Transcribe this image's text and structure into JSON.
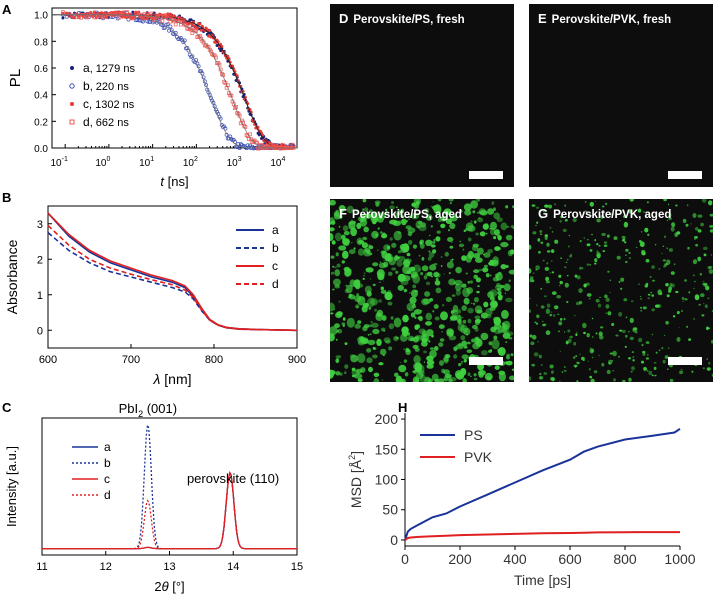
{
  "chart_data": [
    {
      "panel": "A",
      "type": "scatter",
      "xscale": "log",
      "xlim": [
        0.05,
        20000
      ],
      "ylim": [
        0,
        1.05
      ],
      "xlabel_italic": "t",
      "xlabel_unit": " [ns]",
      "ylabel": "PL",
      "x_ticks": [
        {
          "v": 0.1,
          "b": "10",
          "e": "-1"
        },
        {
          "v": 1,
          "b": "10",
          "e": "0"
        },
        {
          "v": 10,
          "b": "10",
          "e": "1"
        },
        {
          "v": 100,
          "b": "10",
          "e": "2"
        },
        {
          "v": 1000,
          "b": "10",
          "e": "3"
        },
        {
          "v": 10000,
          "b": "10",
          "e": "4"
        }
      ],
      "y_ticks": [
        "0.0",
        "0.2",
        "0.4",
        "0.6",
        "0.8",
        "1.0"
      ],
      "series": [
        {
          "name": "a",
          "label": "1279 ns",
          "color": "#1a237e",
          "marker": "dot",
          "tau": 1279
        },
        {
          "name": "b",
          "label": "220 ns",
          "color": "#3f51b5",
          "marker": "open-circle",
          "tau": 220
        },
        {
          "name": "c",
          "label": "1302 ns",
          "color": "#e53935",
          "marker": "dot",
          "tau": 1302
        },
        {
          "name": "d",
          "label": "662 ns",
          "color": "#ef5350",
          "marker": "open-square",
          "tau": 662
        }
      ]
    },
    {
      "panel": "B",
      "type": "line",
      "xlim": [
        600,
        900
      ],
      "ylim": [
        -0.5,
        3.5
      ],
      "xlabel_italic": "λ",
      "xlabel_unit": " [nm]",
      "ylabel": "Absorbance",
      "x_ticks": [
        "600",
        "700",
        "800",
        "900"
      ],
      "y_ticks": [
        "0",
        "1",
        "2",
        "3"
      ],
      "x": [
        600,
        625,
        650,
        675,
        700,
        725,
        750,
        765,
        775,
        785,
        795,
        805,
        815,
        830,
        850,
        875,
        900
      ],
      "series": [
        {
          "name": "a",
          "color": "#1a3399",
          "dash": "solid",
          "values": [
            3.3,
            2.65,
            2.2,
            1.9,
            1.7,
            1.5,
            1.35,
            1.2,
            0.95,
            0.6,
            0.3,
            0.15,
            0.08,
            0.04,
            0.02,
            0.01,
            0.0
          ]
        },
        {
          "name": "b",
          "color": "#1a3399",
          "dash": "dashed",
          "values": [
            2.75,
            2.25,
            1.9,
            1.65,
            1.5,
            1.35,
            1.2,
            1.08,
            0.88,
            0.55,
            0.28,
            0.14,
            0.07,
            0.03,
            0.02,
            0.01,
            0.0
          ]
        },
        {
          "name": "c",
          "color": "#e02020",
          "dash": "solid",
          "values": [
            3.3,
            2.7,
            2.25,
            1.95,
            1.75,
            1.55,
            1.4,
            1.25,
            1.0,
            0.62,
            0.3,
            0.15,
            0.08,
            0.04,
            0.02,
            0.01,
            0.0
          ]
        },
        {
          "name": "d",
          "color": "#e02020",
          "dash": "dashed",
          "values": [
            2.95,
            2.4,
            2.0,
            1.75,
            1.58,
            1.42,
            1.28,
            1.13,
            0.92,
            0.57,
            0.28,
            0.14,
            0.07,
            0.03,
            0.02,
            0.01,
            0.0
          ]
        }
      ]
    },
    {
      "panel": "C",
      "type": "line",
      "xlim": [
        11,
        15
      ],
      "ylim": [
        0,
        1.08
      ],
      "xlabel_prefix": "2",
      "xlabel_italic": "θ",
      "xlabel_unit": " [°]",
      "ylabel": "Intensity [a.u.]",
      "x_ticks": [
        "11",
        "12",
        "13",
        "14",
        "15"
      ],
      "annotations": [
        "PbI",
        "2",
        " (001)",
        "perovskite (110)"
      ],
      "series": [
        {
          "name": "a",
          "color": "#1a3399",
          "dash": "solid",
          "pbi2": 0.01
        },
        {
          "name": "b",
          "color": "#1a3399",
          "dash": "dotted",
          "pbi2": 0.98
        },
        {
          "name": "c",
          "color": "#e02020",
          "dash": "solid",
          "pbi2": 0.01
        },
        {
          "name": "d",
          "color": "#e02020",
          "dash": "dotted",
          "pbi2": 0.38
        }
      ],
      "perovskite_peak": 0.6
    },
    {
      "panel": "H",
      "type": "line",
      "xlim": [
        0,
        1000
      ],
      "ylim": [
        -10,
        210
      ],
      "xlabel": "Time [ps]",
      "ylabel": "MSD [Å",
      "ylabel_sup": "2",
      "ylabel_end": "]",
      "x_ticks": [
        "0",
        "200",
        "400",
        "600",
        "800",
        "1000"
      ],
      "y_ticks": [
        "0",
        "50",
        "100",
        "150",
        "200"
      ],
      "x": [
        0,
        10,
        20,
        50,
        100,
        150,
        200,
        300,
        400,
        500,
        600,
        650,
        700,
        800,
        900,
        980,
        1000
      ],
      "series": [
        {
          "name": "PS",
          "color": "#1a3399",
          "values": [
            0,
            12,
            18,
            25,
            36,
            45,
            55,
            75,
            95,
            115,
            132,
            145,
            155,
            165,
            172,
            178,
            185
          ]
        },
        {
          "name": "PVK",
          "color": "#e02020",
          "values": [
            0,
            3,
            4,
            5,
            6,
            7,
            8,
            9,
            10,
            11,
            11.5,
            12,
            12.5,
            12.8,
            13,
            13,
            13
          ]
        }
      ]
    }
  ],
  "panels": {
    "A": "A",
    "B": "B",
    "C": "C",
    "H": "H"
  },
  "images": {
    "D": {
      "letter": "D",
      "title": "Perovskite/PS, fresh"
    },
    "E": {
      "letter": "E",
      "title": "Perovskite/PVK, fresh"
    },
    "F": {
      "letter": "F",
      "title": "Perovskite/PS, aged"
    },
    "G": {
      "letter": "G",
      "title": "Perovskite/PVK, aged"
    }
  },
  "colors": {
    "green_particles": "#3fcf3f",
    "dark_bg": "#0d0d0d"
  }
}
